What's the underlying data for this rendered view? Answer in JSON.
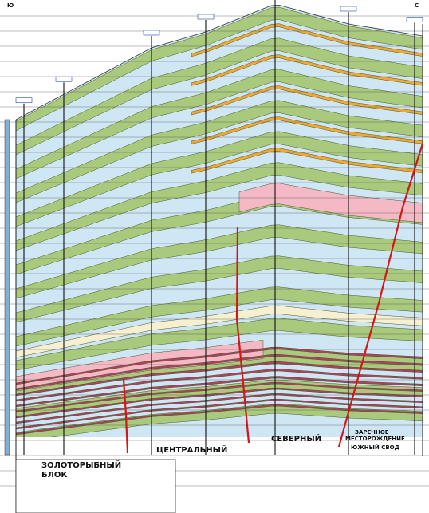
{
  "labels": {
    "south": "Ю",
    "north": "С",
    "block_zolotorybny_1": "ЗОЛОТОРЫБНЫЙ",
    "block_zolotorybny_2": "БЛОК",
    "block_central": "ЦЕНТРАЛЬНЫЙ",
    "block_northern": "СЕВЕРНЫЙ",
    "field_1": "ЗАРЕЧНОЕ",
    "field_2": "МЕСТОРОЖДЕНИЕ",
    "south_arch": "ЮЖНЫЙ СВОД"
  }
}
